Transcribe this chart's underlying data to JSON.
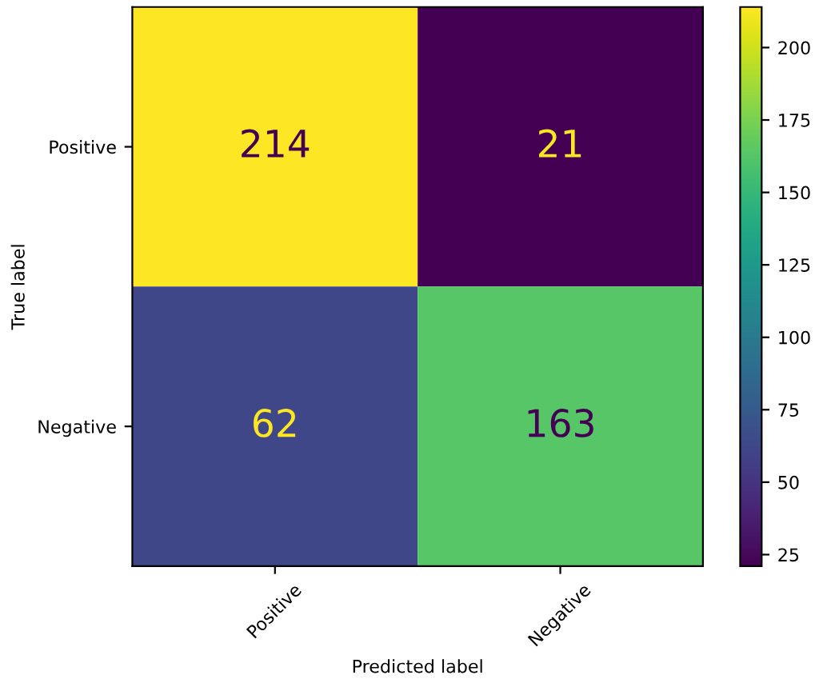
{
  "chart_data": {
    "type": "heatmap",
    "xlabel": "Predicted label",
    "ylabel": "True label",
    "categories": [
      "Positive",
      "Negative"
    ],
    "y_categories": [
      "Positive",
      "Negative"
    ],
    "cells": [
      [
        214,
        21
      ],
      [
        62,
        163
      ]
    ],
    "data_labels": true,
    "clim": [
      21,
      214
    ],
    "cticks": [
      25,
      50,
      75,
      100,
      125,
      150,
      175,
      200
    ]
  }
}
